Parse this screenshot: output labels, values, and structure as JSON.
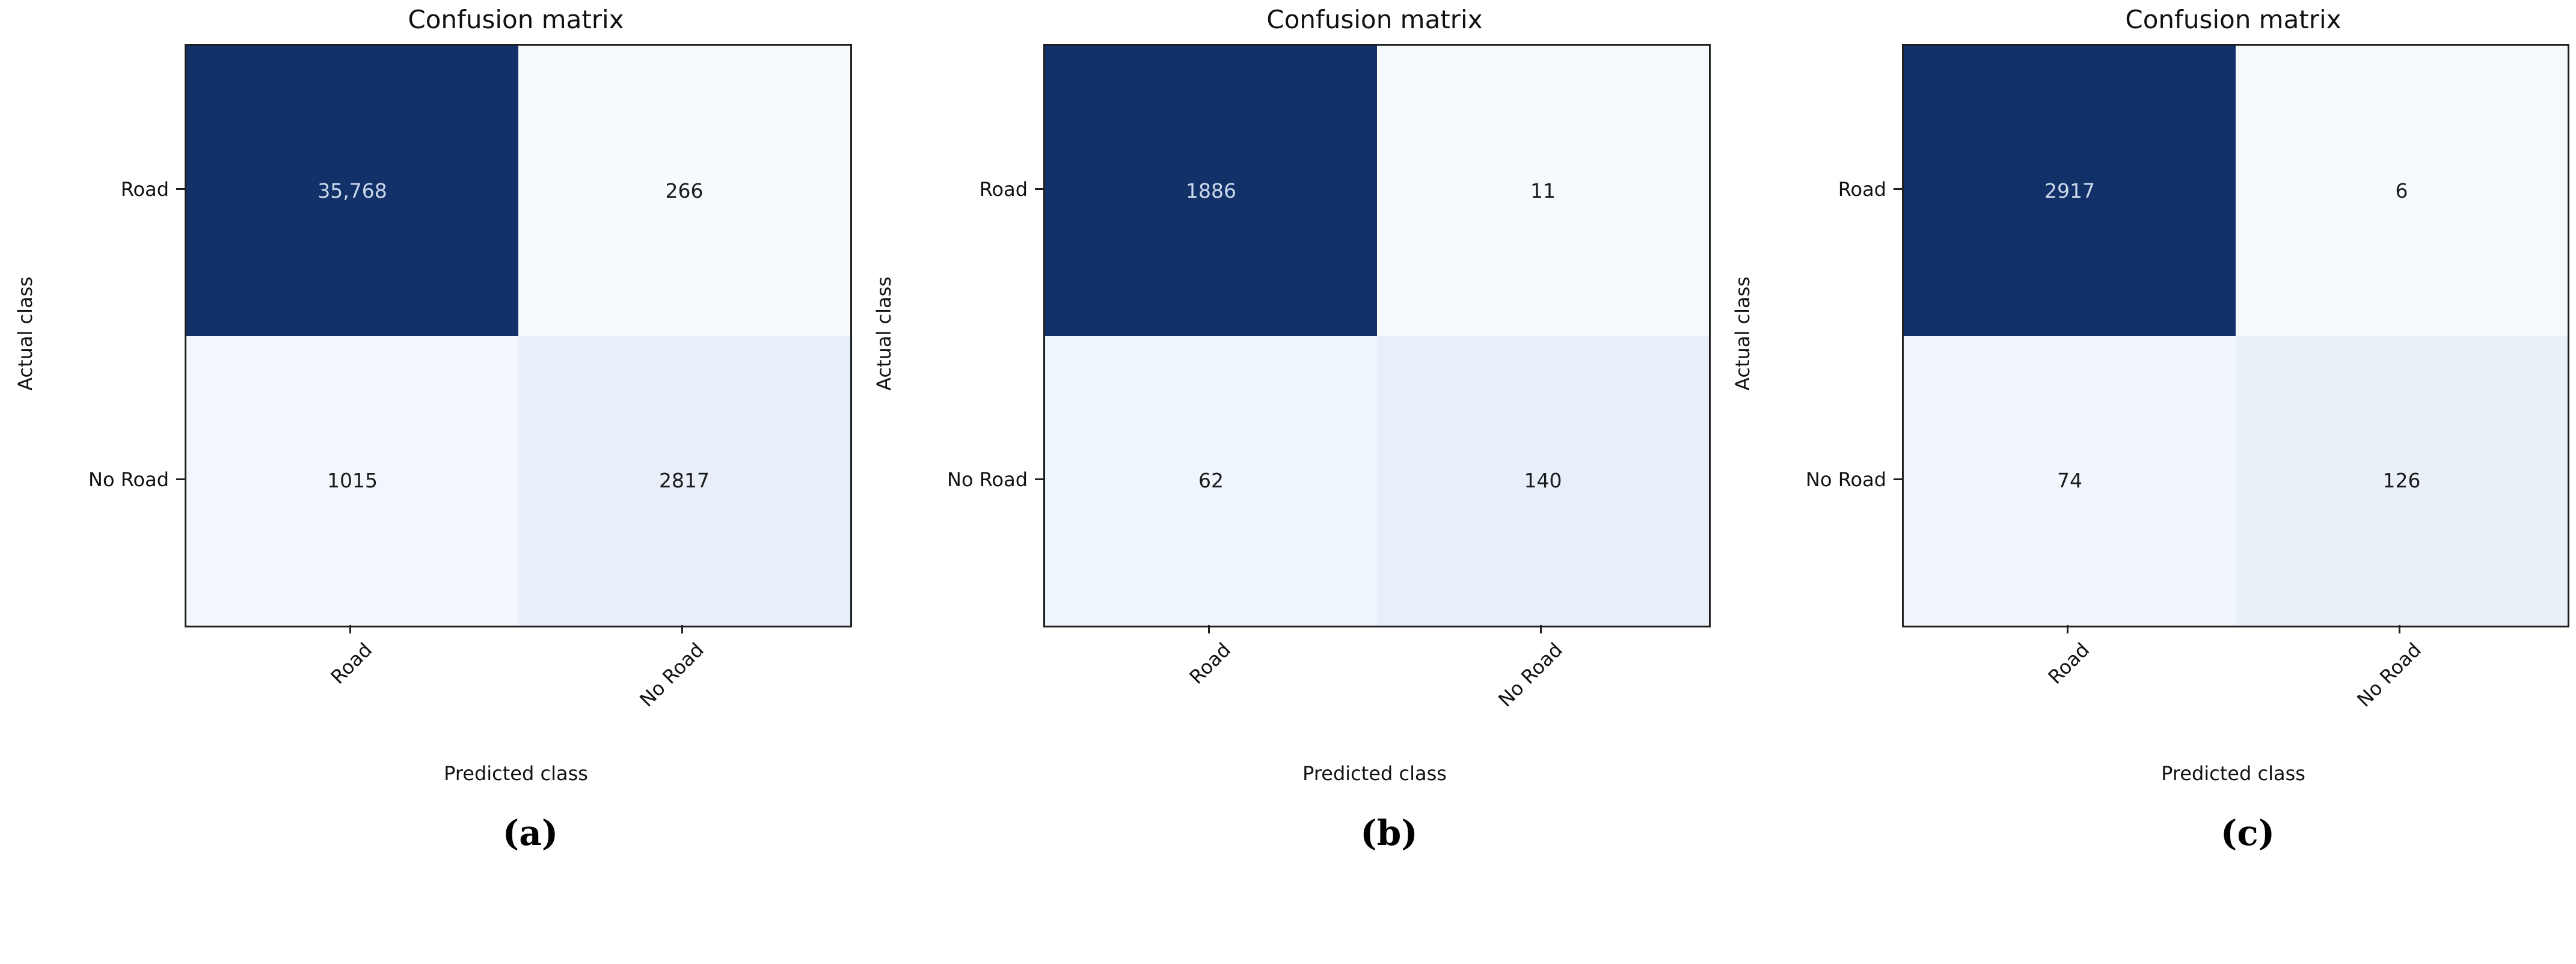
{
  "figure": {
    "background": "#ffffff",
    "axis_color": "#1f1f1f",
    "dark_cell_color": "#123169"
  },
  "chart_data": [
    {
      "type": "heatmap",
      "title": "Confusion matrix",
      "xlabel": "Predicted class",
      "ylabel": "Actual class",
      "x_categories": [
        "Road",
        "No Road"
      ],
      "y_categories": [
        "Road",
        "No Road"
      ],
      "values": [
        [
          35768,
          266
        ],
        [
          1015,
          2817
        ]
      ],
      "cell_labels": [
        [
          "35,768",
          "266"
        ],
        [
          "1015",
          "2817"
        ]
      ],
      "cell_colors": [
        [
          "#123169",
          "#f6fafe"
        ],
        [
          "#f1f7fd",
          "#e8eff8"
        ]
      ],
      "cell_text_colors": [
        [
          "#ccd9eb",
          "#1a1a1a"
        ],
        [
          "#1a1a1a",
          "#1a1a1a"
        ]
      ],
      "colormap": "Blues",
      "legend": "off",
      "grid": "off",
      "caption": "(a)"
    },
    {
      "type": "heatmap",
      "title": "Confusion matrix",
      "xlabel": "Predicted class",
      "ylabel": "Actual class",
      "x_categories": [
        "Road",
        "No Road"
      ],
      "y_categories": [
        "Road",
        "No Road"
      ],
      "values": [
        [
          1886,
          11
        ],
        [
          62,
          140
        ]
      ],
      "cell_labels": [
        [
          "1886",
          "11"
        ],
        [
          "62",
          "140"
        ]
      ],
      "cell_colors": [
        [
          "#123169",
          "#f6fafe"
        ],
        [
          "#eff5fc",
          "#e7eff8"
        ]
      ],
      "cell_text_colors": [
        [
          "#ccd9eb",
          "#1a1a1a"
        ],
        [
          "#1a1a1a",
          "#1a1a1a"
        ]
      ],
      "colormap": "Blues",
      "legend": "off",
      "grid": "off",
      "caption": "(b)"
    },
    {
      "type": "heatmap",
      "title": "Confusion matrix",
      "xlabel": "Predicted class",
      "ylabel": "Actual class",
      "x_categories": [
        "Road",
        "No Road"
      ],
      "y_categories": [
        "Road",
        "No Road"
      ],
      "values": [
        [
          2917,
          6
        ],
        [
          74,
          126
        ]
      ],
      "cell_labels": [
        [
          "2917",
          "6"
        ],
        [
          "74",
          "126"
        ]
      ],
      "cell_colors": [
        [
          "#123169",
          "#f6fafe"
        ],
        [
          "#f0f6fc",
          "#e9f0f8"
        ]
      ],
      "cell_text_colors": [
        [
          "#ccd9eb",
          "#1a1a1a"
        ],
        [
          "#1a1a1a",
          "#1a1a1a"
        ]
      ],
      "colormap": "Blues",
      "legend": "off",
      "grid": "off",
      "caption": "(c)"
    }
  ]
}
